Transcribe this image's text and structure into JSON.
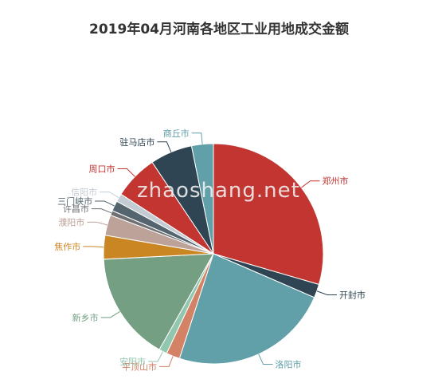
{
  "chart_data": {
    "type": "pie",
    "title": "2019年04月河南各地区工业用地成交金额",
    "slices": [
      {
        "label": "郑州市",
        "value": 29.5,
        "color": "#c23531"
      },
      {
        "label": "开封市",
        "value": 2.0,
        "color": "#2f4554"
      },
      {
        "label": "洛阳市",
        "value": 23.5,
        "color": "#61a0a8"
      },
      {
        "label": "平顶山市",
        "value": 2.0,
        "color": "#d48265"
      },
      {
        "label": "安阳市",
        "value": 1.2,
        "color": "#91c7ae"
      },
      {
        "label": "新乡市",
        "value": 16.0,
        "color": "#749f83"
      },
      {
        "label": "焦作市",
        "value": 3.5,
        "color": "#ca8622"
      },
      {
        "label": "濮阳市",
        "value": 3.0,
        "color": "#bda29a"
      },
      {
        "label": "许昌市",
        "value": 0.7,
        "color": "#6e7074"
      },
      {
        "label": "三门峡市",
        "value": 1.5,
        "color": "#546570"
      },
      {
        "label": "信阳市",
        "value": 1.2,
        "color": "#c4ccd3"
      },
      {
        "label": "周口市",
        "value": 6.5,
        "color": "#c23531"
      },
      {
        "label": "驻马店市",
        "value": 6.2,
        "color": "#2f4554"
      },
      {
        "label": "商丘市",
        "value": 3.2,
        "color": "#61a0a8"
      }
    ]
  },
  "watermark": "zhaoshang.net"
}
